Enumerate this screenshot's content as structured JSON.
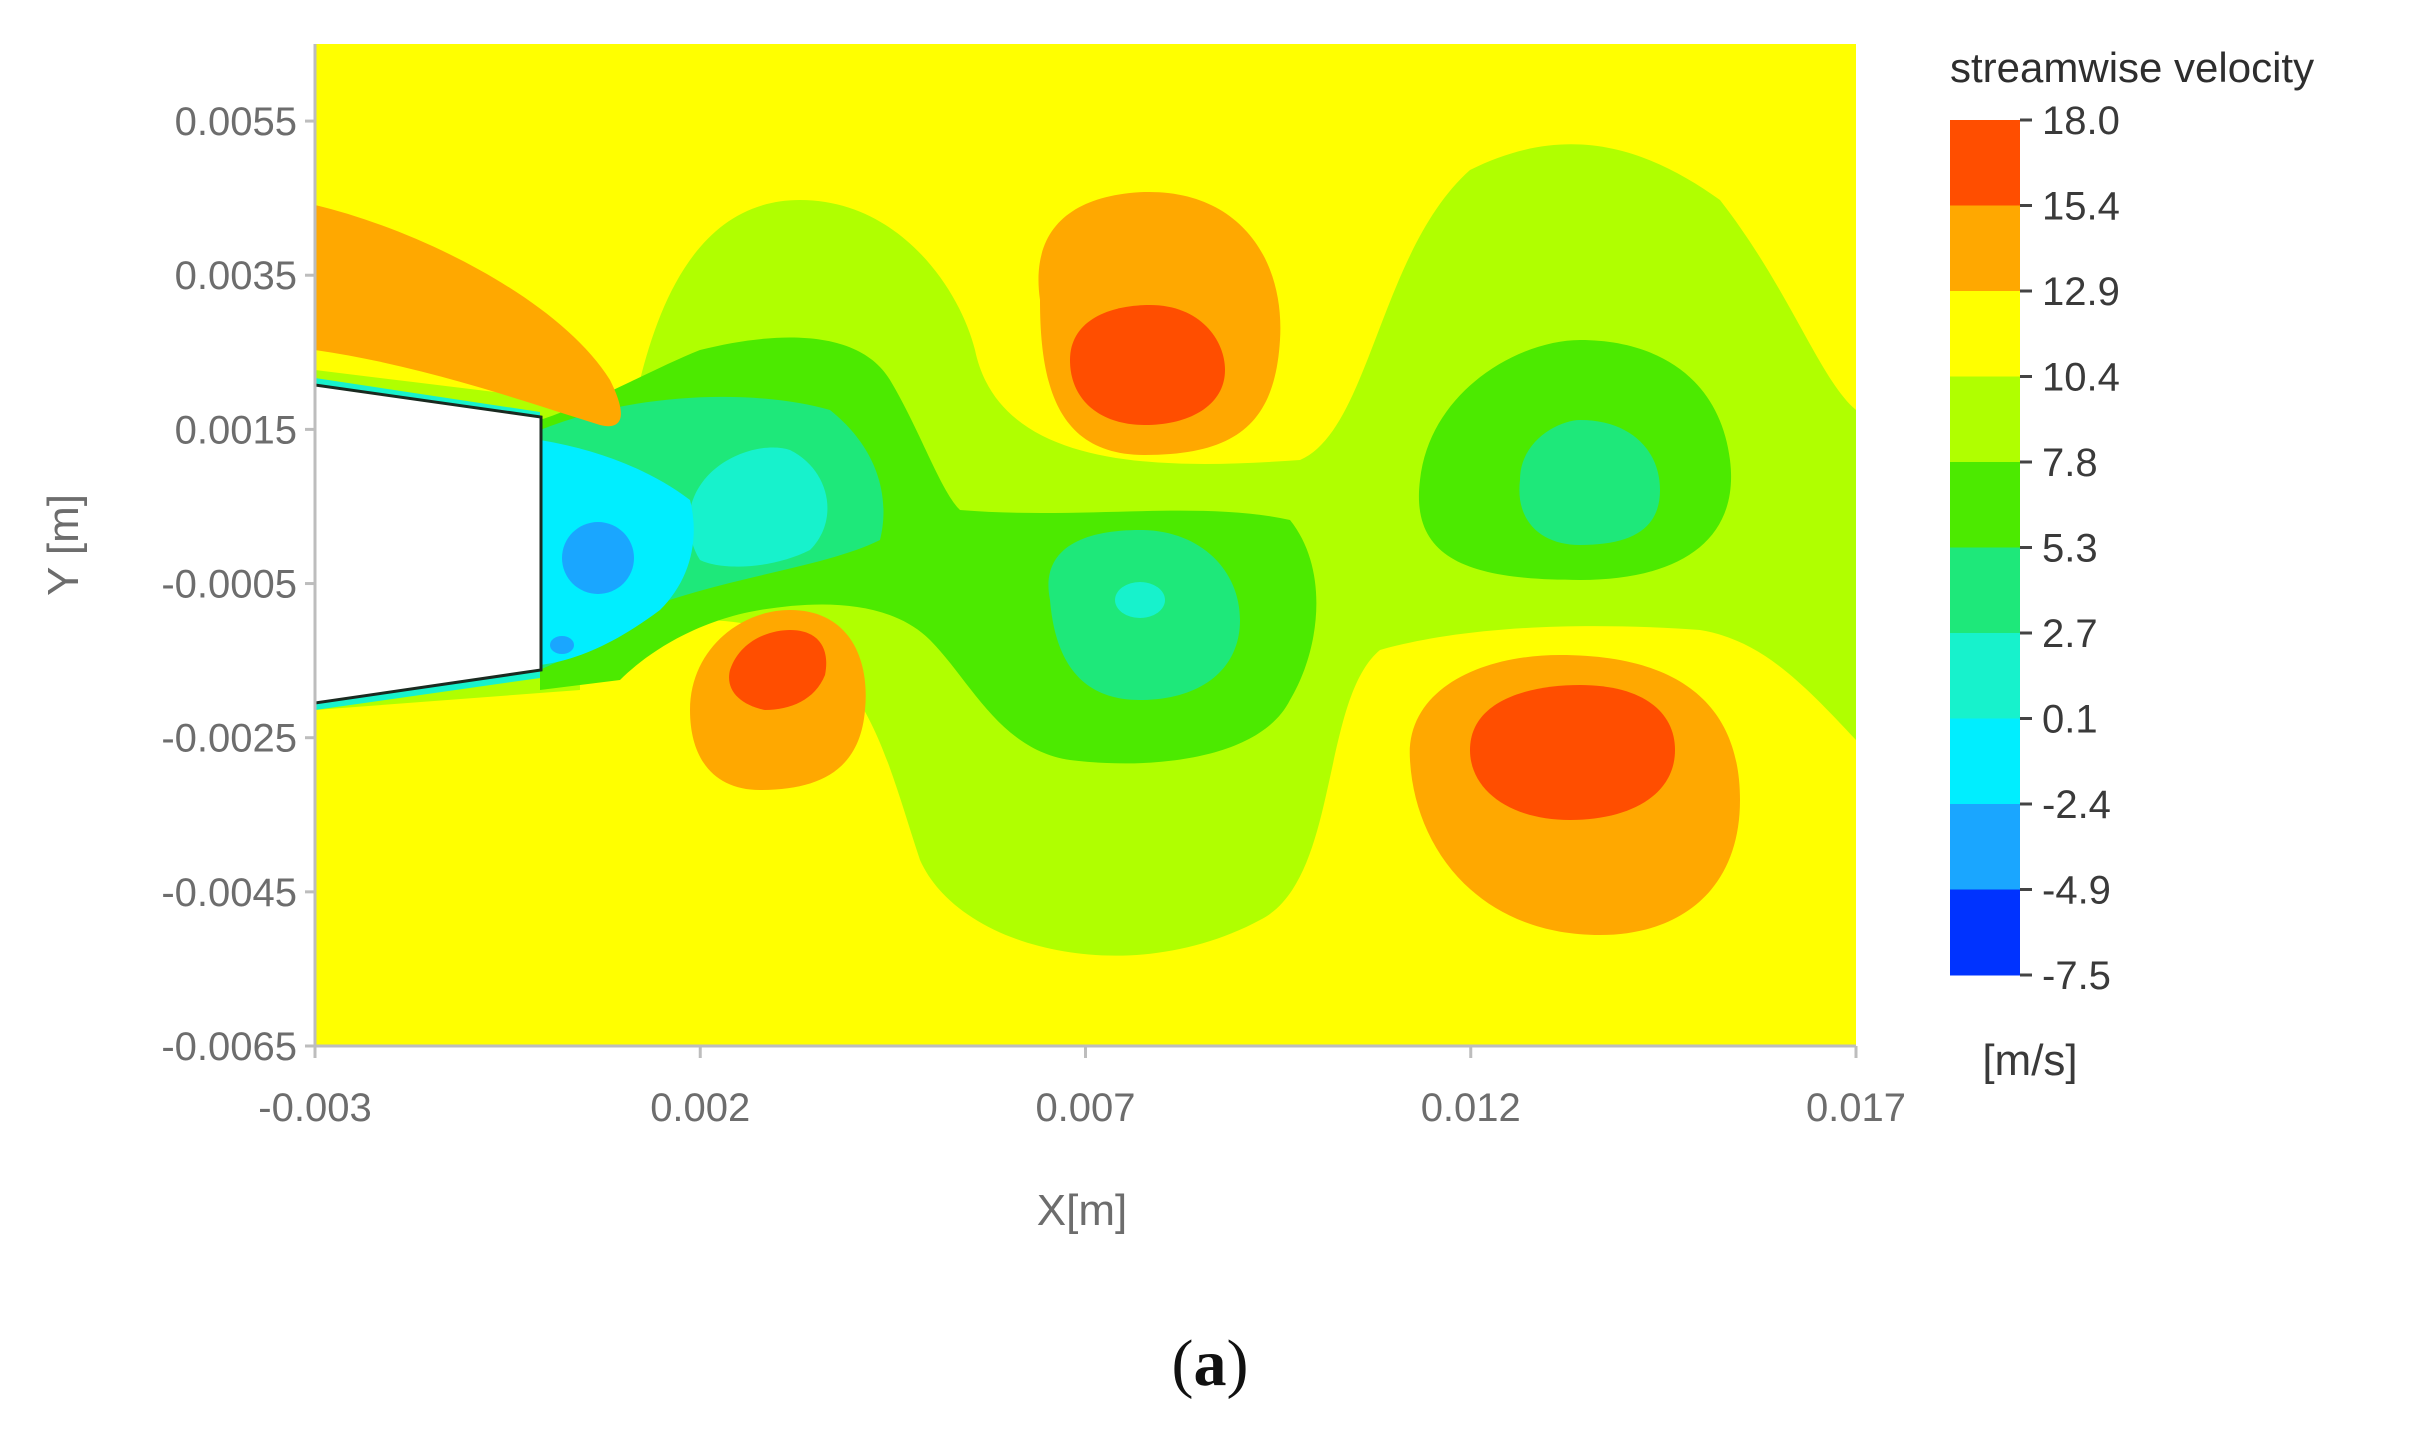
{
  "chart_data": {
    "type": "heatmap",
    "title": "",
    "xlabel": "X[m]",
    "ylabel": "Y [m]",
    "xlim": [
      -0.003,
      0.017
    ],
    "ylim": [
      -0.0065,
      0.0065
    ],
    "x_ticks": [
      "-0.003",
      "0.002",
      "0.007",
      "0.012",
      "0.017"
    ],
    "y_ticks": [
      "0.0055",
      "0.0035",
      "0.0015",
      "-0.0005",
      "-0.0025",
      "-0.0045",
      "-0.0065"
    ],
    "colorbar": {
      "title": "streamwise velocity",
      "unit": "[m/s]",
      "levels": [
        "18.0",
        "15.4",
        "12.9",
        "10.4",
        "7.8",
        "5.3",
        "2.7",
        "0.1",
        "-2.4",
        "-4.9",
        "-7.5"
      ],
      "colors": [
        "#ff4e00",
        "#ffa800",
        "#ffff00",
        "#b0ff00",
        "#4cea00",
        "#1ee87a",
        "#17f2cc",
        "#00eeff",
        "#1aa6ff",
        "#0033ff"
      ]
    },
    "body": {
      "description_color": "#ffffff"
    },
    "extrema": [
      {
        "x": 0.0078,
        "y": 0.0023,
        "value": "max (red core)"
      },
      {
        "x": 0.0136,
        "y": -0.0027,
        "value": "max (red core)"
      },
      {
        "x": 0.0031,
        "y": -0.0016,
        "value": "max (red core)"
      },
      {
        "x": 0.0008,
        "y": -0.0002,
        "value": "min (blue core)"
      }
    ],
    "grid": false,
    "legend": "right"
  },
  "caption": {
    "open": "(",
    "letter": "a",
    "close": ")"
  }
}
